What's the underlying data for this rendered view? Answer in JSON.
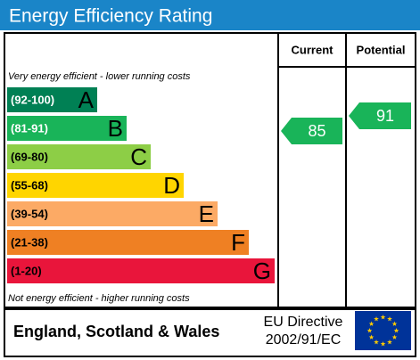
{
  "chart_data": {
    "type": "epc",
    "title": "Energy Efficiency Rating",
    "columns": [
      "Current",
      "Potential"
    ],
    "top_note": "Very energy efficient - lower running costs",
    "bottom_note": "Not energy efficient - higher running costs",
    "bands": [
      {
        "range": "(92-100)",
        "letter": "A",
        "color": "#008054"
      },
      {
        "range": "(81-91)",
        "letter": "B",
        "color": "#19b459"
      },
      {
        "range": "(69-80)",
        "letter": "C",
        "color": "#8dce46"
      },
      {
        "range": "(55-68)",
        "letter": "D",
        "color": "#ffd500"
      },
      {
        "range": "(39-54)",
        "letter": "E",
        "color": "#fcaa65"
      },
      {
        "range": "(21-38)",
        "letter": "F",
        "color": "#ef8023"
      },
      {
        "range": "(1-20)",
        "letter": "G",
        "color": "#e9153b"
      }
    ],
    "current": 85,
    "current_color": "#19b459",
    "potential": 91,
    "potential_color": "#19b459",
    "region": "England, Scotland & Wales",
    "directive": [
      "EU Directive",
      "2002/91/EC"
    ]
  }
}
